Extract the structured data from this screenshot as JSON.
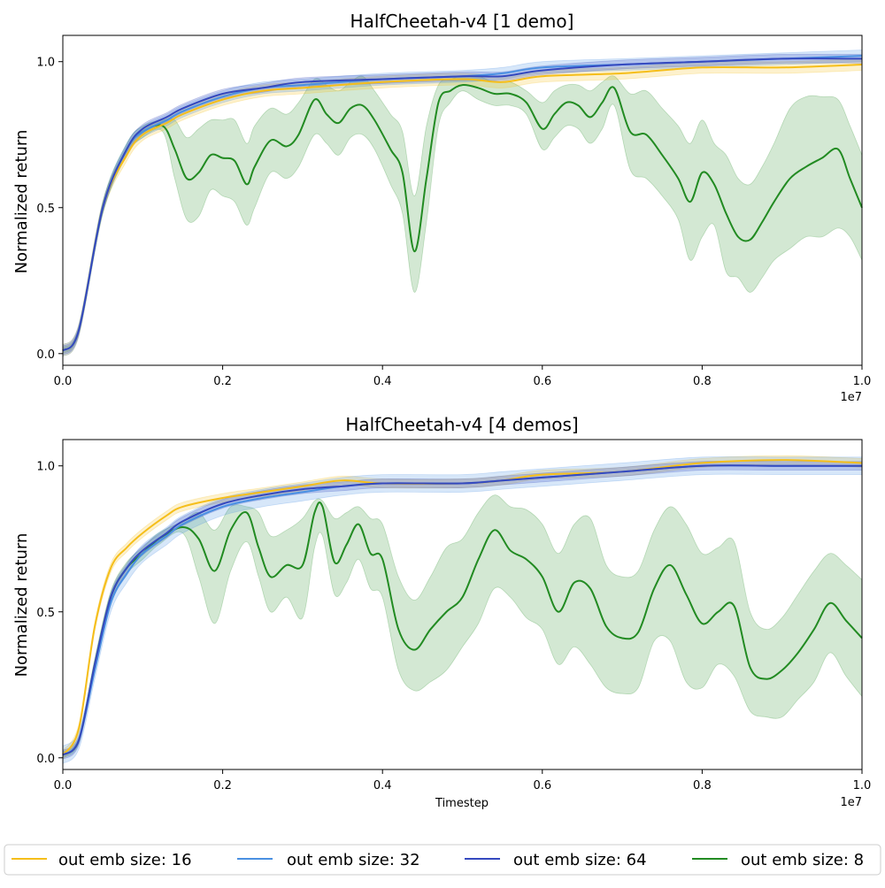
{
  "chart_data": [
    {
      "type": "line",
      "title": "HalfCheetah-v4 [1 demo]",
      "xlabel": "",
      "ylabel": "Normalized return",
      "x_offset_label": "1e7",
      "xlim": [
        0,
        1.0
      ],
      "ylim": [
        -0.04,
        1.09
      ],
      "xticks": [
        0.0,
        0.2,
        0.4,
        0.6,
        0.8,
        1.0
      ],
      "xtick_labels": [
        "0.0",
        "0.2",
        "0.4",
        "0.6",
        "0.8",
        "1.0"
      ],
      "yticks": [
        0.0,
        0.5,
        1.0
      ],
      "ytick_labels": [
        "0.0",
        "0.5",
        "1.0"
      ],
      "x": [
        0.0,
        0.05,
        0.1,
        0.15,
        0.2,
        0.25,
        0.3,
        0.35,
        0.4,
        0.5,
        0.6,
        0.7,
        0.8,
        0.9,
        1.0
      ],
      "series": [
        {
          "name": "out emb size: 16",
          "color": "#f5be1a",
          "band": 0.02,
          "x": [
            0.0,
            0.02,
            0.05,
            0.08,
            0.1,
            0.13,
            0.15,
            0.2,
            0.25,
            0.3,
            0.4,
            0.5,
            0.55,
            0.6,
            0.7,
            0.8,
            0.9,
            1.0
          ],
          "values": [
            0.01,
            0.08,
            0.5,
            0.68,
            0.75,
            0.79,
            0.82,
            0.87,
            0.9,
            0.91,
            0.93,
            0.94,
            0.93,
            0.95,
            0.96,
            0.98,
            0.98,
            0.99
          ]
        },
        {
          "name": "out emb size: 32",
          "color": "#4a90e2",
          "band": 0.02,
          "x": [
            0.0,
            0.02,
            0.05,
            0.08,
            0.1,
            0.13,
            0.15,
            0.2,
            0.25,
            0.3,
            0.4,
            0.5,
            0.55,
            0.6,
            0.7,
            0.8,
            0.9,
            1.0
          ],
          "values": [
            0.01,
            0.08,
            0.5,
            0.7,
            0.76,
            0.8,
            0.83,
            0.88,
            0.91,
            0.92,
            0.94,
            0.95,
            0.96,
            0.98,
            0.99,
            1.0,
            1.01,
            1.02
          ]
        },
        {
          "name": "out emb size: 64",
          "color": "#3549bf",
          "band": 0.015,
          "x": [
            0.0,
            0.02,
            0.05,
            0.08,
            0.1,
            0.13,
            0.15,
            0.2,
            0.25,
            0.3,
            0.4,
            0.5,
            0.55,
            0.6,
            0.7,
            0.8,
            0.9,
            1.0
          ],
          "values": [
            0.01,
            0.08,
            0.5,
            0.7,
            0.77,
            0.81,
            0.84,
            0.89,
            0.91,
            0.93,
            0.94,
            0.95,
            0.95,
            0.97,
            0.99,
            1.0,
            1.01,
            1.01
          ]
        },
        {
          "name": "out emb size: 8",
          "color": "#228b22",
          "band_color": "#228b22",
          "x": [
            0.0,
            0.02,
            0.05,
            0.08,
            0.1,
            0.125,
            0.14,
            0.155,
            0.17,
            0.185,
            0.2,
            0.215,
            0.23,
            0.24,
            0.26,
            0.28,
            0.295,
            0.315,
            0.33,
            0.345,
            0.36,
            0.375,
            0.39,
            0.41,
            0.425,
            0.44,
            0.455,
            0.47,
            0.485,
            0.5,
            0.52,
            0.54,
            0.56,
            0.58,
            0.6,
            0.615,
            0.63,
            0.645,
            0.66,
            0.675,
            0.69,
            0.71,
            0.73,
            0.75,
            0.77,
            0.785,
            0.8,
            0.815,
            0.83,
            0.845,
            0.86,
            0.875,
            0.89,
            0.91,
            0.93,
            0.95,
            0.97,
            0.985,
            1.0
          ],
          "values": [
            0.01,
            0.08,
            0.5,
            0.7,
            0.76,
            0.78,
            0.7,
            0.6,
            0.62,
            0.68,
            0.67,
            0.66,
            0.58,
            0.64,
            0.73,
            0.71,
            0.75,
            0.87,
            0.82,
            0.79,
            0.84,
            0.85,
            0.8,
            0.7,
            0.62,
            0.35,
            0.6,
            0.86,
            0.9,
            0.92,
            0.91,
            0.89,
            0.89,
            0.86,
            0.77,
            0.82,
            0.86,
            0.85,
            0.81,
            0.86,
            0.91,
            0.76,
            0.75,
            0.68,
            0.6,
            0.52,
            0.62,
            0.58,
            0.48,
            0.4,
            0.39,
            0.45,
            0.52,
            0.6,
            0.64,
            0.67,
            0.7,
            0.6,
            0.5
          ],
          "lower": [
            0.0,
            0.07,
            0.48,
            0.68,
            0.74,
            0.76,
            0.6,
            0.46,
            0.47,
            0.56,
            0.54,
            0.52,
            0.44,
            0.5,
            0.62,
            0.6,
            0.64,
            0.75,
            0.72,
            0.68,
            0.74,
            0.75,
            0.7,
            0.58,
            0.48,
            0.21,
            0.45,
            0.78,
            0.86,
            0.9,
            0.87,
            0.85,
            0.85,
            0.82,
            0.7,
            0.74,
            0.78,
            0.77,
            0.72,
            0.77,
            0.85,
            0.63,
            0.6,
            0.54,
            0.46,
            0.32,
            0.4,
            0.44,
            0.28,
            0.26,
            0.21,
            0.26,
            0.32,
            0.36,
            0.4,
            0.4,
            0.43,
            0.4,
            0.32
          ],
          "upper": [
            0.02,
            0.09,
            0.52,
            0.72,
            0.78,
            0.8,
            0.8,
            0.74,
            0.77,
            0.8,
            0.8,
            0.8,
            0.72,
            0.78,
            0.84,
            0.82,
            0.86,
            0.94,
            0.92,
            0.9,
            0.93,
            0.95,
            0.9,
            0.82,
            0.76,
            0.54,
            0.78,
            0.92,
            0.94,
            0.95,
            0.95,
            0.93,
            0.93,
            0.9,
            0.86,
            0.9,
            0.92,
            0.92,
            0.9,
            0.93,
            0.95,
            0.89,
            0.9,
            0.84,
            0.78,
            0.72,
            0.8,
            0.72,
            0.68,
            0.6,
            0.58,
            0.64,
            0.72,
            0.84,
            0.88,
            0.88,
            0.87,
            0.78,
            0.68
          ]
        }
      ]
    },
    {
      "type": "line",
      "title": "HalfCheetah-v4 [4 demos]",
      "xlabel": "Timestep",
      "ylabel": "Normalized return",
      "x_offset_label": "1e7",
      "xlim": [
        0,
        1.0
      ],
      "ylim": [
        -0.04,
        1.09
      ],
      "xticks": [
        0.0,
        0.2,
        0.4,
        0.6,
        0.8,
        1.0
      ],
      "xtick_labels": [
        "0.0",
        "0.2",
        "0.4",
        "0.6",
        "0.8",
        "1.0"
      ],
      "yticks": [
        0.0,
        0.5,
        1.0
      ],
      "ytick_labels": [
        "0.0",
        "0.5",
        "1.0"
      ],
      "series": [
        {
          "name": "out emb size: 16",
          "color": "#f5be1a",
          "band": 0.015,
          "x": [
            0.0,
            0.02,
            0.04,
            0.06,
            0.08,
            0.1,
            0.13,
            0.15,
            0.2,
            0.25,
            0.3,
            0.35,
            0.4,
            0.5,
            0.55,
            0.6,
            0.7,
            0.8,
            0.9,
            1.0
          ],
          "values": [
            0.01,
            0.1,
            0.45,
            0.65,
            0.72,
            0.77,
            0.83,
            0.86,
            0.89,
            0.91,
            0.93,
            0.95,
            0.94,
            0.94,
            0.95,
            0.97,
            0.98,
            1.01,
            1.02,
            1.01
          ]
        },
        {
          "name": "out emb size: 32",
          "color": "#4a90e2",
          "band": 0.03,
          "x": [
            0.0,
            0.02,
            0.04,
            0.06,
            0.08,
            0.1,
            0.13,
            0.15,
            0.2,
            0.25,
            0.3,
            0.35,
            0.4,
            0.5,
            0.55,
            0.6,
            0.7,
            0.8,
            0.9,
            1.0
          ],
          "values": [
            0.01,
            0.06,
            0.3,
            0.53,
            0.63,
            0.7,
            0.76,
            0.8,
            0.86,
            0.89,
            0.91,
            0.93,
            0.94,
            0.94,
            0.95,
            0.96,
            0.98,
            1.0,
            1.0,
            1.0
          ]
        },
        {
          "name": "out emb size: 64",
          "color": "#3549bf",
          "band": 0.015,
          "x": [
            0.0,
            0.02,
            0.04,
            0.06,
            0.08,
            0.1,
            0.13,
            0.15,
            0.2,
            0.25,
            0.3,
            0.35,
            0.4,
            0.5,
            0.55,
            0.6,
            0.7,
            0.8,
            0.9,
            1.0
          ],
          "values": [
            0.01,
            0.06,
            0.32,
            0.55,
            0.65,
            0.71,
            0.77,
            0.81,
            0.87,
            0.9,
            0.92,
            0.93,
            0.94,
            0.94,
            0.95,
            0.96,
            0.98,
            1.0,
            1.0,
            1.0
          ]
        },
        {
          "name": "out emb size: 8",
          "color": "#228b22",
          "x": [
            0.0,
            0.02,
            0.04,
            0.06,
            0.08,
            0.1,
            0.12,
            0.15,
            0.17,
            0.19,
            0.21,
            0.23,
            0.245,
            0.26,
            0.28,
            0.3,
            0.315,
            0.325,
            0.34,
            0.355,
            0.37,
            0.385,
            0.4,
            0.42,
            0.44,
            0.46,
            0.48,
            0.5,
            0.52,
            0.54,
            0.56,
            0.58,
            0.6,
            0.62,
            0.64,
            0.66,
            0.68,
            0.7,
            0.72,
            0.74,
            0.76,
            0.78,
            0.8,
            0.82,
            0.84,
            0.86,
            0.88,
            0.9,
            0.92,
            0.94,
            0.96,
            0.98,
            1.0
          ],
          "values": [
            0.01,
            0.06,
            0.32,
            0.55,
            0.65,
            0.7,
            0.75,
            0.79,
            0.75,
            0.64,
            0.78,
            0.84,
            0.72,
            0.62,
            0.66,
            0.66,
            0.84,
            0.86,
            0.67,
            0.73,
            0.8,
            0.7,
            0.68,
            0.44,
            0.37,
            0.44,
            0.5,
            0.55,
            0.68,
            0.78,
            0.71,
            0.68,
            0.62,
            0.5,
            0.6,
            0.58,
            0.45,
            0.41,
            0.43,
            0.58,
            0.66,
            0.56,
            0.46,
            0.5,
            0.52,
            0.31,
            0.27,
            0.3,
            0.36,
            0.44,
            0.53,
            0.47,
            0.41
          ],
          "lower": [
            0.0,
            0.05,
            0.3,
            0.53,
            0.63,
            0.68,
            0.73,
            0.77,
            0.62,
            0.46,
            0.64,
            0.74,
            0.62,
            0.5,
            0.55,
            0.48,
            0.72,
            0.76,
            0.56,
            0.6,
            0.68,
            0.58,
            0.55,
            0.3,
            0.23,
            0.26,
            0.3,
            0.38,
            0.46,
            0.58,
            0.55,
            0.48,
            0.44,
            0.32,
            0.38,
            0.32,
            0.24,
            0.22,
            0.24,
            0.4,
            0.4,
            0.26,
            0.24,
            0.32,
            0.28,
            0.16,
            0.14,
            0.14,
            0.2,
            0.26,
            0.36,
            0.28,
            0.21
          ],
          "upper": [
            0.02,
            0.07,
            0.34,
            0.57,
            0.67,
            0.72,
            0.77,
            0.81,
            0.84,
            0.78,
            0.86,
            0.86,
            0.84,
            0.76,
            0.78,
            0.82,
            0.88,
            0.88,
            0.82,
            0.84,
            0.86,
            0.82,
            0.8,
            0.62,
            0.54,
            0.62,
            0.72,
            0.75,
            0.84,
            0.9,
            0.86,
            0.85,
            0.8,
            0.7,
            0.8,
            0.82,
            0.66,
            0.62,
            0.64,
            0.78,
            0.86,
            0.8,
            0.7,
            0.72,
            0.74,
            0.5,
            0.44,
            0.48,
            0.56,
            0.64,
            0.7,
            0.66,
            0.61
          ]
        }
      ]
    }
  ],
  "legend": {
    "items": [
      {
        "label": "out emb size: 16",
        "color": "#f5be1a"
      },
      {
        "label": "out emb size: 32",
        "color": "#4a90e2"
      },
      {
        "label": "out emb size: 64",
        "color": "#3549bf"
      },
      {
        "label": "out emb size: 8",
        "color": "#228b22"
      }
    ]
  }
}
